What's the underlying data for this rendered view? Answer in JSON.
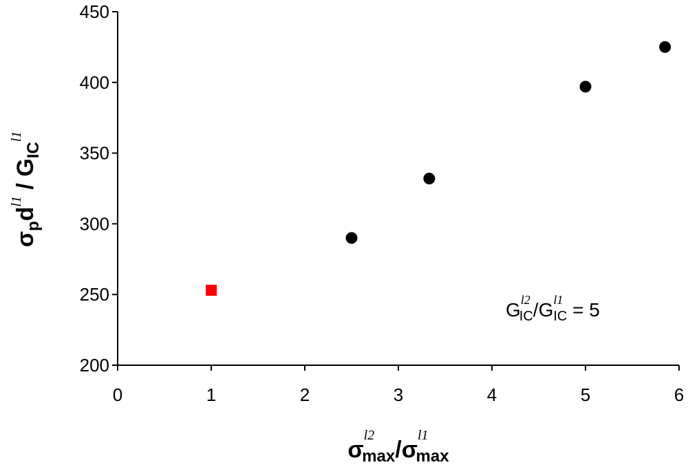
{
  "chart_data": {
    "type": "scatter",
    "xlabel": [
      "σ",
      "l2",
      "max",
      "/σ",
      "l1",
      "max"
    ],
    "ylabel": [
      "σ",
      "p",
      "d",
      "l1",
      " / G",
      "IC",
      "l1"
    ],
    "annotation": [
      "G",
      "l2",
      "IC",
      "/G",
      "l1",
      "IC",
      " = 5"
    ],
    "xlim": [
      0,
      6
    ],
    "xticks": [
      0,
      1,
      2,
      3,
      4,
      5,
      6
    ],
    "ylim": [
      200,
      450
    ],
    "yticks": [
      200,
      250,
      300,
      350,
      400,
      450
    ],
    "series": [
      {
        "color": "#ff0000",
        "marker": "square",
        "x": [
          1
        ],
        "values": [
          253
        ]
      },
      {
        "color": "#000000",
        "marker": "circle",
        "x": [
          2.5,
          3.33,
          5,
          5.85
        ],
        "values": [
          290,
          332,
          397,
          425
        ]
      }
    ]
  }
}
